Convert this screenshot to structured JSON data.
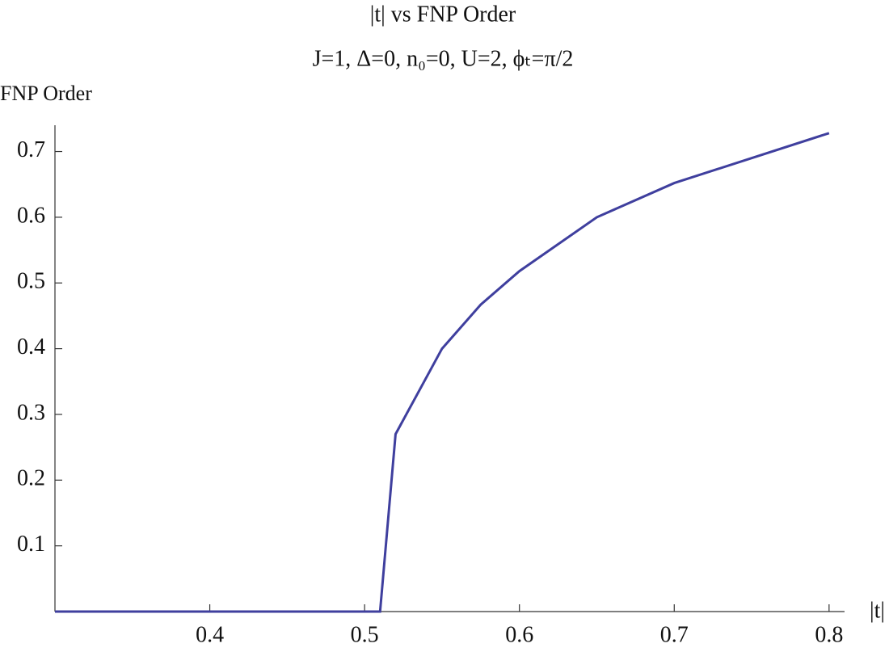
{
  "chart_data": {
    "type": "line",
    "title": "|t| vs FNP Order",
    "subtitle": "J=1, Δ=0, n₀=0, U=2, ϕₜ=π/2",
    "x_label": "|t|",
    "y_label": "FNP  Order",
    "x": [
      0.3,
      0.51,
      0.52,
      0.55,
      0.575,
      0.6,
      0.65,
      0.7,
      0.8
    ],
    "series": [
      {
        "color": "#3f3f9e",
        "values": [
          0,
          0,
          0.27,
          0.4,
          0.467,
          0.518,
          0.6,
          0.652,
          0.728
        ]
      }
    ],
    "xlim": [
      0.3,
      0.81
    ],
    "ylim": [
      0,
      0.74
    ],
    "xticks": [
      0.4,
      0.5,
      0.6,
      0.7,
      0.8
    ],
    "yticks": [
      0.1,
      0.2,
      0.3,
      0.4,
      0.5,
      0.6,
      0.7
    ]
  }
}
